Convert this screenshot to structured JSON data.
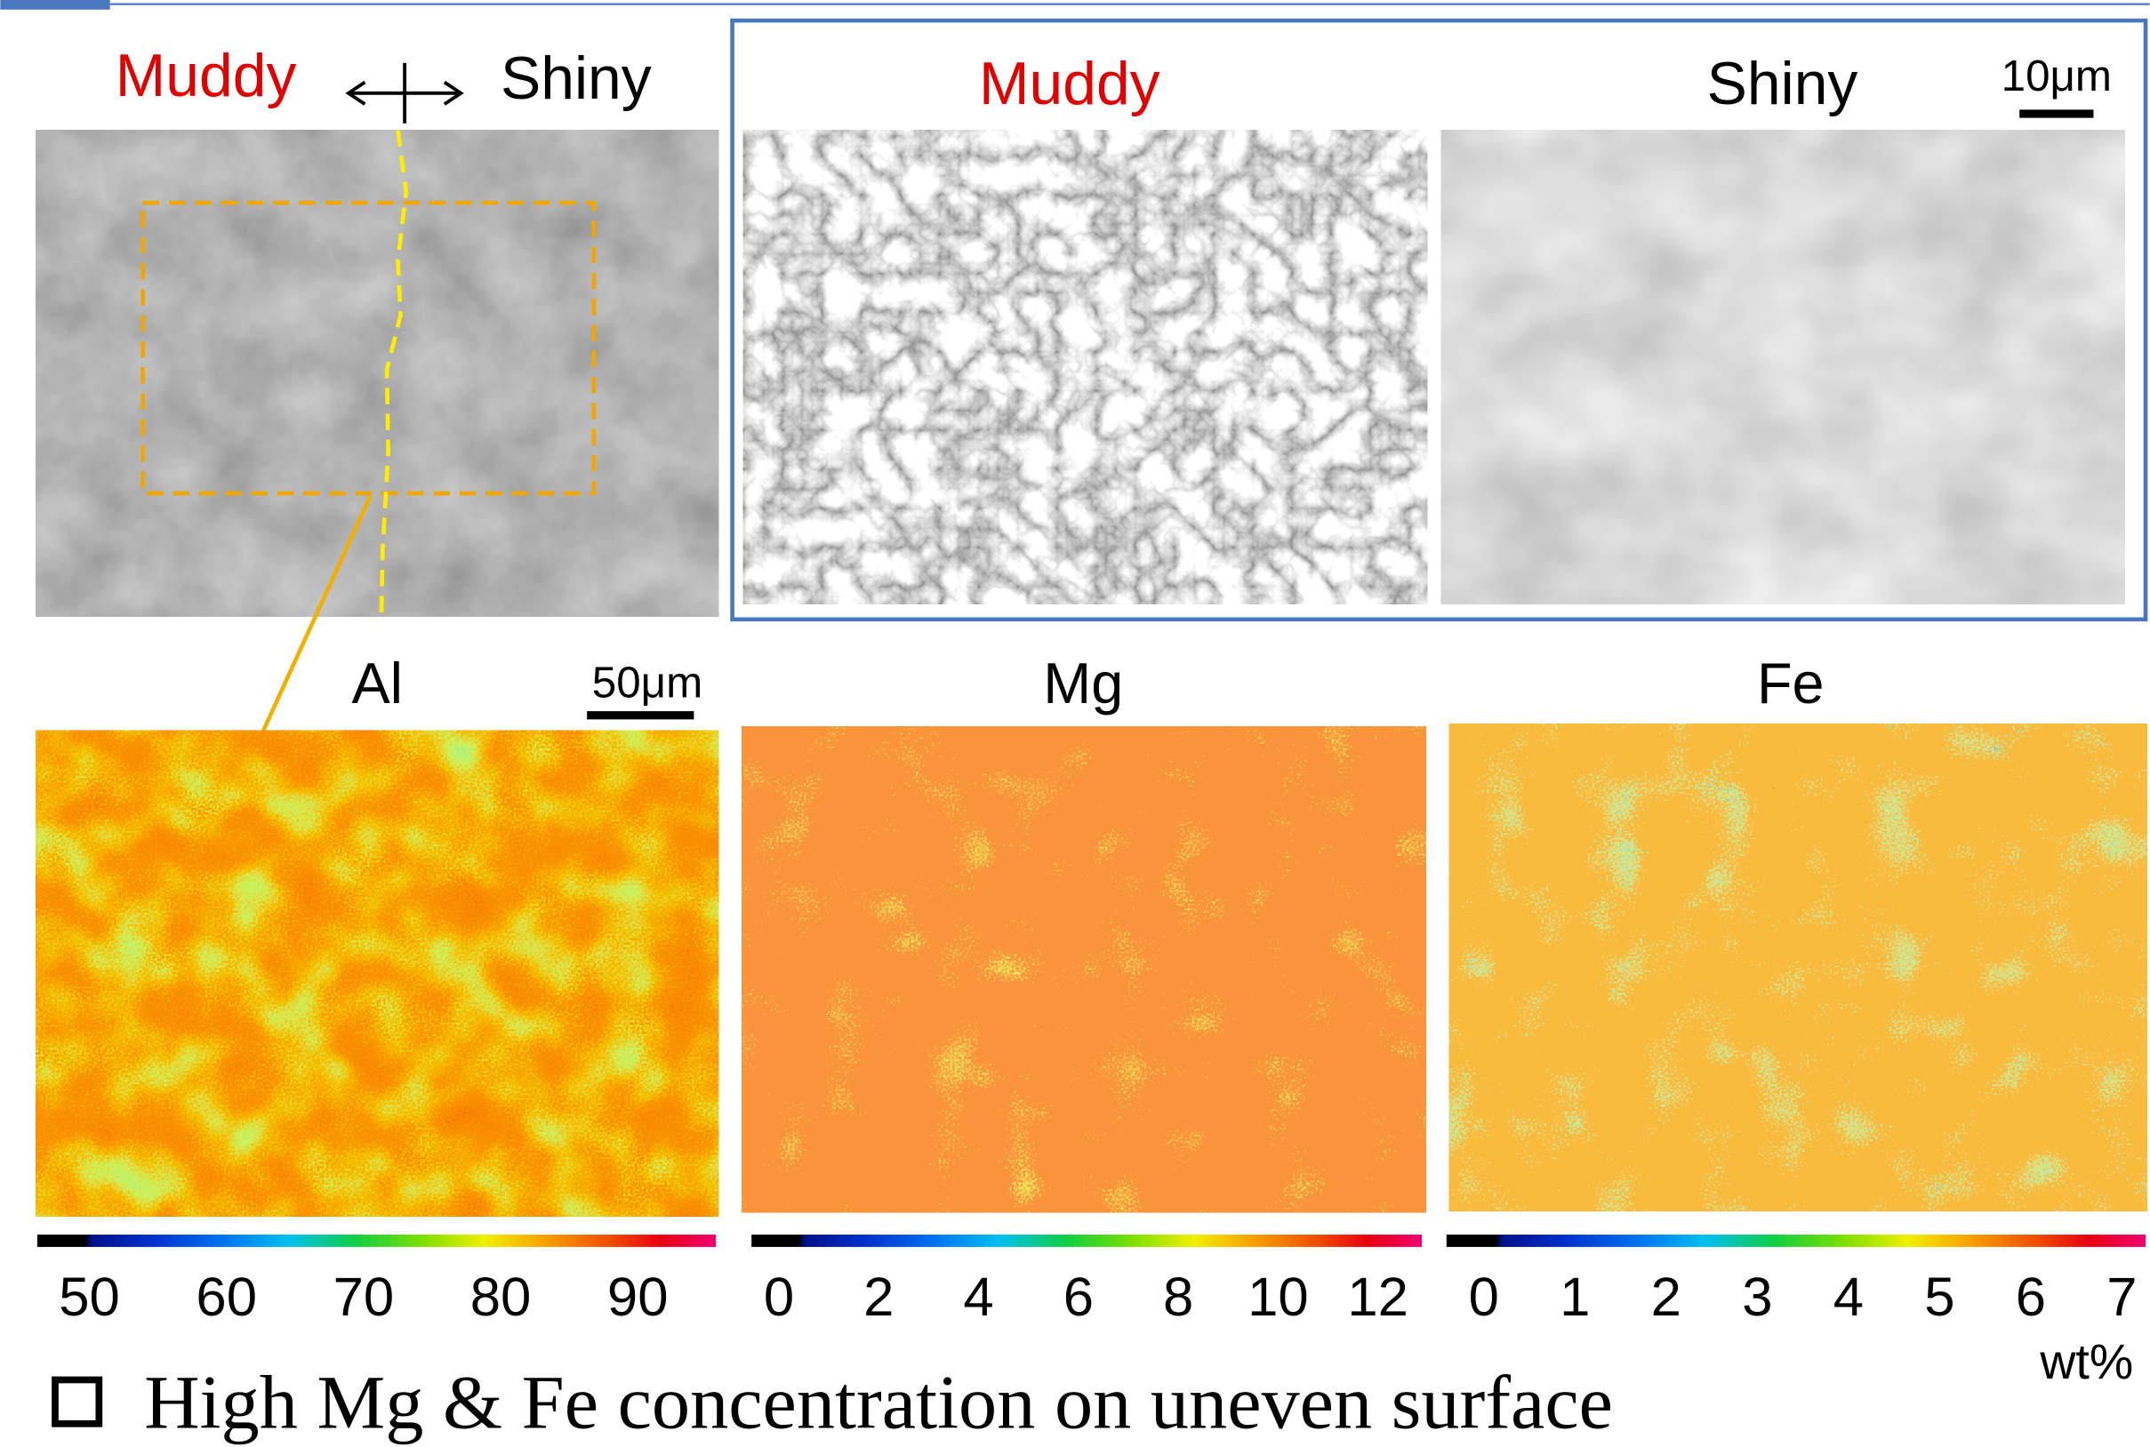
{
  "overview": {
    "left_label": "Muddy",
    "right_label": "Shiny"
  },
  "sem": {
    "panels": [
      {
        "title": "Muddy"
      },
      {
        "title": "Shiny"
      }
    ],
    "scale_bar": "10μm"
  },
  "maps": [
    {
      "element": "Al",
      "scale_bar": "50μm",
      "ticks": [
        50,
        60,
        70,
        80,
        90
      ],
      "lim": [
        46.2,
        95.7
      ]
    },
    {
      "element": "Mg",
      "ticks": [
        0,
        2,
        4,
        6,
        8,
        10,
        12
      ],
      "lim": [
        -0.55,
        12.88
      ]
    },
    {
      "element": "Fe",
      "ticks": [
        0,
        1,
        2,
        3,
        4,
        5,
        6,
        7
      ],
      "lim": [
        -0.41,
        7.26
      ],
      "unit": "wt%"
    }
  ],
  "caption": "High Mg & Fe concentration on uneven surface"
}
